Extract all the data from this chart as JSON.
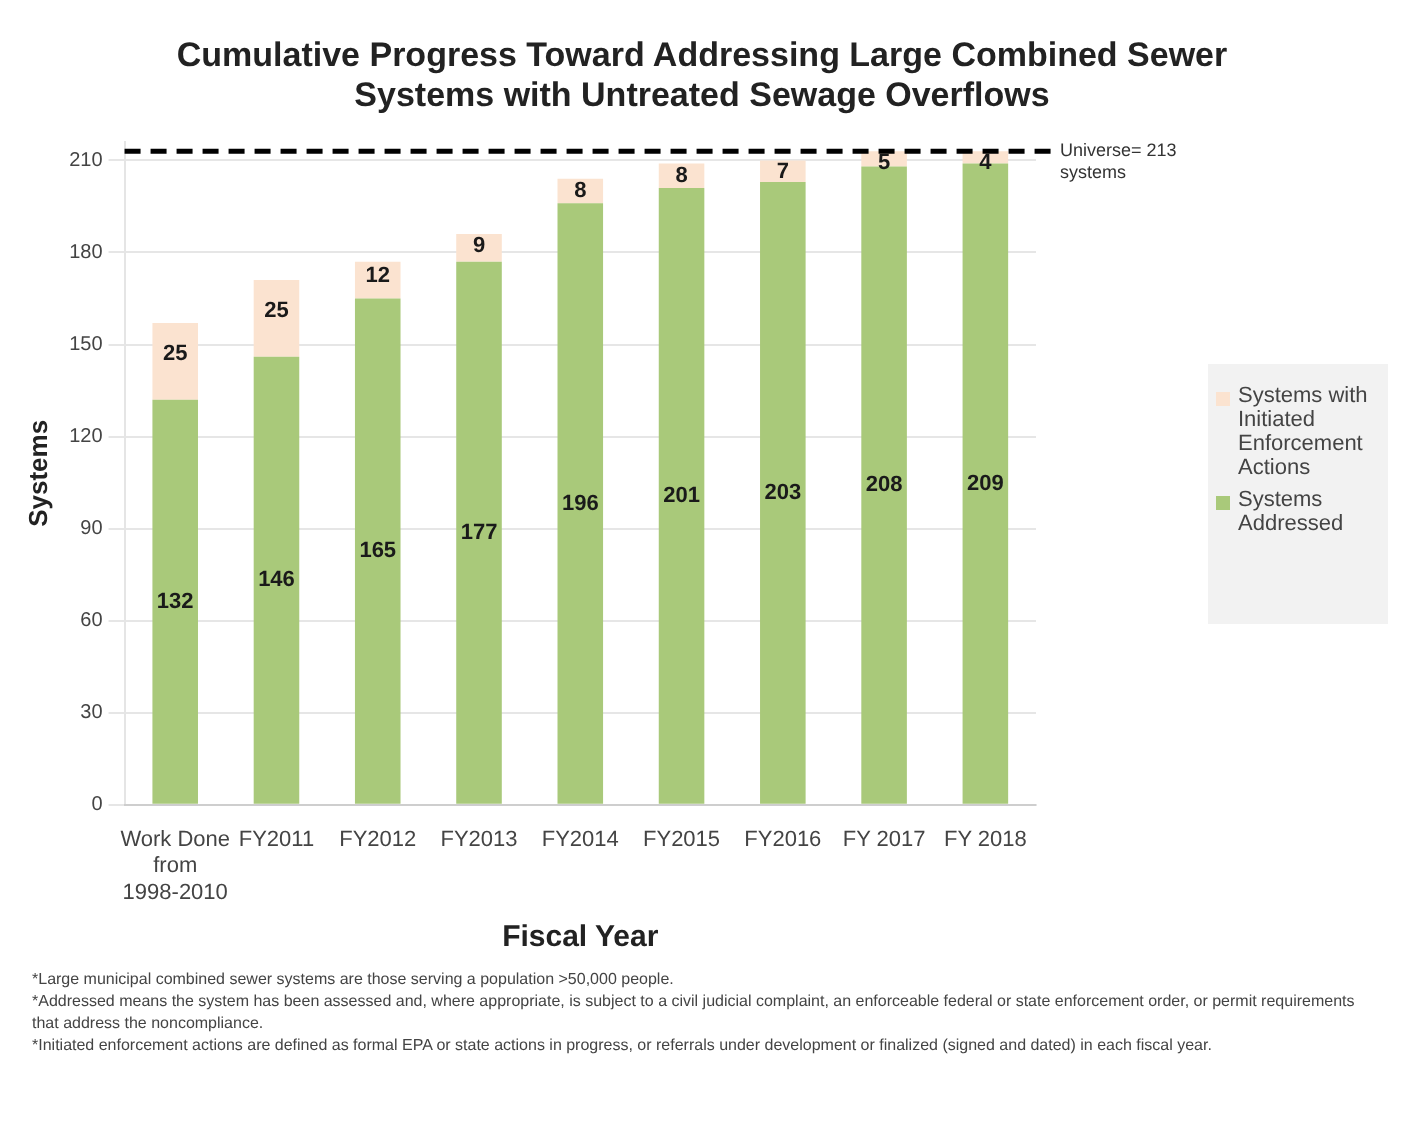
{
  "chart_data": {
    "type": "bar",
    "title": "Cumulative Progress Toward Addressing Large Combined Sewer Systems with Untreated Sewage Overflows",
    "xlabel": "Fiscal Year",
    "ylabel": "Systems",
    "categories": [
      "Work Done from 1998-2010",
      "FY2011",
      "FY2012",
      "FY2013",
      "FY2014",
      "FY2015",
      "FY2016",
      "FY 2017",
      "FY 2018"
    ],
    "series": [
      {
        "name": "Systems Addressed",
        "color": "#a9c97a",
        "values": [
          132,
          146,
          165,
          177,
          196,
          201,
          203,
          208,
          209
        ]
      },
      {
        "name": "Systems with Initiated Enforcement Actions",
        "color": "#fbe3d0",
        "values": [
          25,
          25,
          12,
          9,
          8,
          8,
          7,
          5,
          4
        ]
      }
    ],
    "stacked": true,
    "data_labels": true,
    "ylim": [
      0,
      216
    ],
    "yticks": [
      0,
      30,
      60,
      90,
      120,
      150,
      180,
      210
    ],
    "grid": "y",
    "legend": "right",
    "ref_lines": [
      {
        "axis": "y",
        "value": 213,
        "label": "Universe= 213 systems",
        "color": "#000000",
        "line_style": "dashed"
      }
    ],
    "annotations": [
      "*Large municipal combined sewer systems are those serving a population >50,000 people.",
      "*Addressed means the system has been assessed and, where appropriate, is subject to a civil judicial complaint, an enforceable federal or state enforcement order, or permit requirements that address the noncompliance.",
      "*Initiated enforcement actions are defined as formal EPA or state actions in progress, or referrals under development or finalized (signed and dated) in each fiscal year."
    ]
  }
}
